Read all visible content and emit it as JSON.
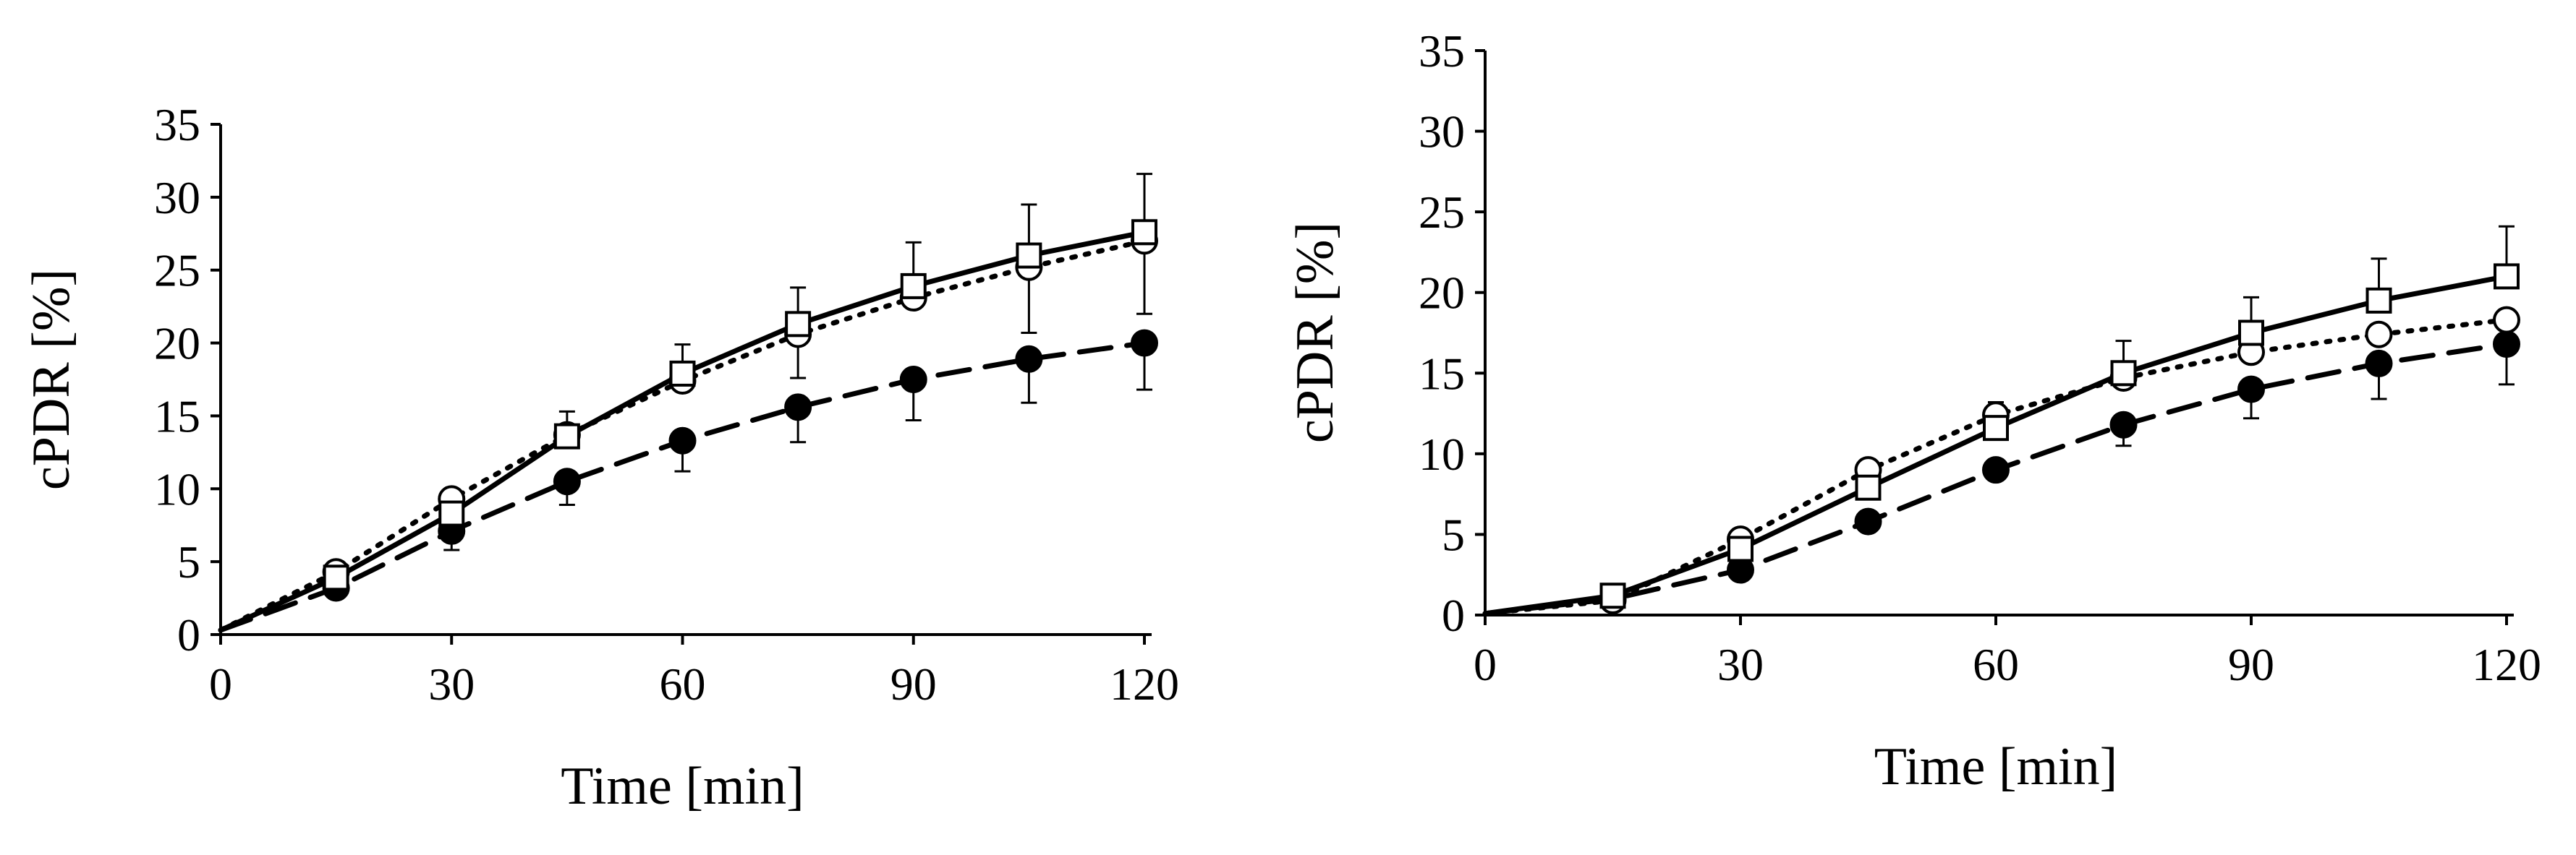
{
  "chart_data": [
    {
      "type": "line",
      "xlabel": "Time [min]",
      "ylabel": "cPDR [%]",
      "xlim": [
        0,
        120
      ],
      "ylim": [
        0,
        35
      ],
      "xticks": [
        "0",
        "30",
        "60",
        "90",
        "120"
      ],
      "yticks": [
        "0",
        "5",
        "10",
        "15",
        "20",
        "25",
        "30",
        "35"
      ],
      "grid": false,
      "x": [
        0,
        15,
        30,
        45,
        60,
        75,
        90,
        105,
        120
      ],
      "series": [
        {
          "name": "open-square-solid",
          "marker": "square-open",
          "line": "solid",
          "values": [
            0.3,
            3.9,
            8.3,
            13.6,
            17.9,
            21.3,
            23.9,
            26.0,
            27.6
          ],
          "err_up": [
            0,
            0,
            0,
            1.7,
            2.0,
            2.5,
            3.0,
            3.5,
            4.0
          ]
        },
        {
          "name": "open-circle-dotted",
          "marker": "circle-open",
          "line": "dotted",
          "values": [
            0.3,
            4.3,
            9.3,
            13.7,
            17.4,
            20.6,
            23.1,
            25.2,
            27.0
          ],
          "err_down": [
            0,
            0,
            0,
            0,
            0,
            3.0,
            0,
            4.5,
            5.0
          ]
        },
        {
          "name": "filled-circle-dashed",
          "marker": "circle-filled",
          "line": "dashed",
          "values": [
            0.3,
            3.2,
            7.1,
            10.5,
            13.3,
            15.6,
            17.5,
            18.9,
            20.0
          ],
          "err_down": [
            0,
            0,
            1.3,
            1.6,
            2.1,
            2.4,
            2.8,
            3.0,
            3.2
          ]
        }
      ]
    },
    {
      "type": "line",
      "xlabel": "Time [min]",
      "ylabel": "cPDR [%]",
      "xlim": [
        0,
        120
      ],
      "ylim": [
        0,
        35
      ],
      "xticks": [
        "0",
        "30",
        "60",
        "90",
        "120"
      ],
      "yticks": [
        "0",
        "5",
        "10",
        "15",
        "20",
        "25",
        "30",
        "35"
      ],
      "grid": false,
      "x": [
        0,
        15,
        30,
        45,
        60,
        75,
        90,
        105,
        120
      ],
      "series": [
        {
          "name": "open-square-solid",
          "marker": "square-open",
          "line": "solid",
          "values": [
            0.1,
            1.2,
            4.1,
            7.9,
            11.6,
            15.0,
            17.5,
            19.5,
            21.0
          ],
          "err_up": [
            0,
            0,
            0,
            0,
            0,
            2.0,
            2.2,
            2.6,
            3.1
          ]
        },
        {
          "name": "open-circle-dotted",
          "marker": "circle-open",
          "line": "dotted",
          "values": [
            0.1,
            0.9,
            4.7,
            9.0,
            12.4,
            14.7,
            16.3,
            17.4,
            18.3
          ],
          "err_up": [
            0,
            0,
            0,
            0,
            0.8,
            0,
            0,
            0,
            0
          ]
        },
        {
          "name": "filled-circle-dashed",
          "marker": "circle-filled",
          "line": "dashed",
          "values": [
            0.1,
            1.0,
            2.8,
            5.8,
            9.0,
            11.8,
            14.0,
            15.6,
            16.8
          ],
          "err_down": [
            0,
            0,
            0,
            0,
            0,
            1.3,
            1.8,
            2.2,
            2.5
          ]
        }
      ]
    }
  ]
}
